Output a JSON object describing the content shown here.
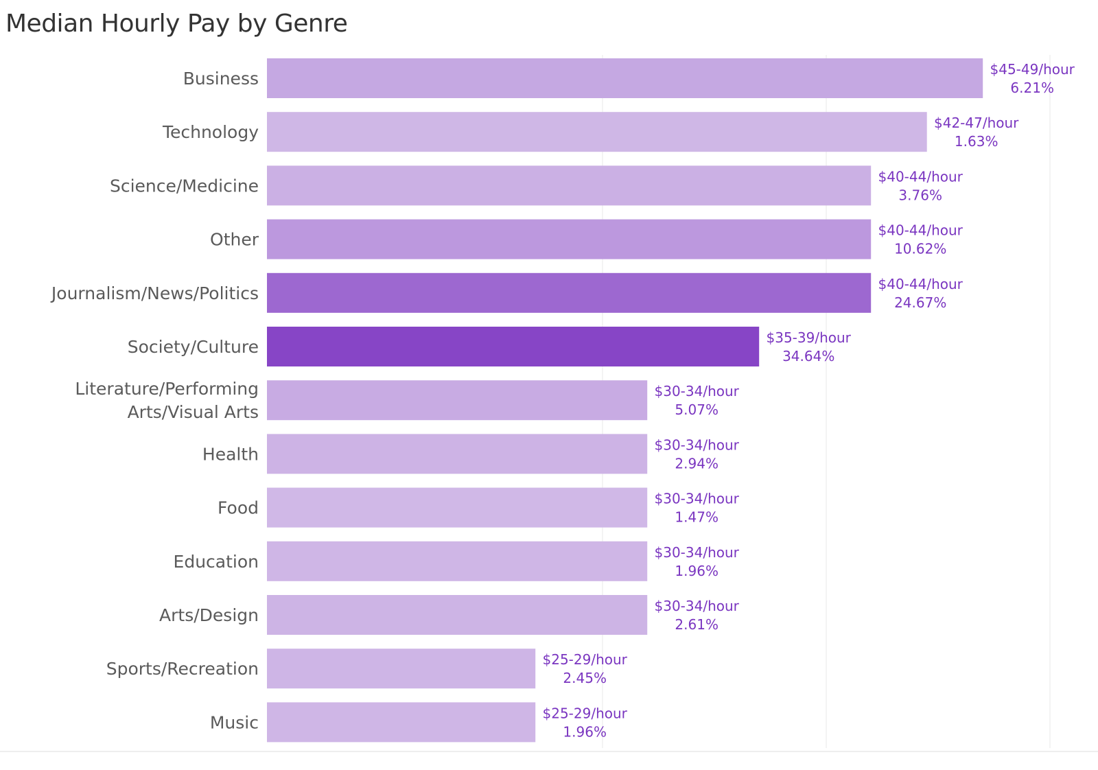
{
  "chart_data": {
    "type": "bar",
    "orientation": "horizontal",
    "title": "Median Hourly Pay by Genre",
    "xlabel": "",
    "ylabel": "",
    "xlim": [
      15,
      50
    ],
    "grid": true,
    "value_note": "values are midpoints of the hourly pay range in $/hour",
    "categories": [
      "Business",
      "Technology",
      "Science/Medicine",
      "Other",
      "Journalism/News/Politics",
      "Society/Culture",
      "Literature/Performing Arts/Visual Arts",
      "Health",
      "Food",
      "Education",
      "Arts/Design",
      "Sports/Recreation",
      "Music"
    ],
    "values": [
      47,
      44.5,
      42,
      42,
      42,
      37,
      32,
      32,
      32,
      32,
      32,
      27,
      27
    ],
    "pay_labels": [
      "$45-49/hour",
      "$42-47/hour",
      "$40-44/hour",
      "$40-44/hour",
      "$40-44/hour",
      "$35-39/hour",
      "$30-34/hour",
      "$30-34/hour",
      "$30-34/hour",
      "$30-34/hour",
      "$30-34/hour",
      "$25-29/hour",
      "$25-29/hour"
    ],
    "share_labels": [
      "6.21%",
      "1.63%",
      "3.76%",
      "10.62%",
      "24.67%",
      "34.64%",
      "5.07%",
      "2.94%",
      "1.47%",
      "1.96%",
      "2.61%",
      "2.45%",
      "1.96%"
    ],
    "share_values": [
      6.21,
      1.63,
      3.76,
      10.62,
      24.67,
      34.64,
      5.07,
      2.94,
      1.47,
      1.96,
      2.61,
      2.45,
      1.96
    ],
    "color_light": "#d3bde8",
    "color_dark": "#8644c6",
    "label_color": "#7a35c0"
  }
}
